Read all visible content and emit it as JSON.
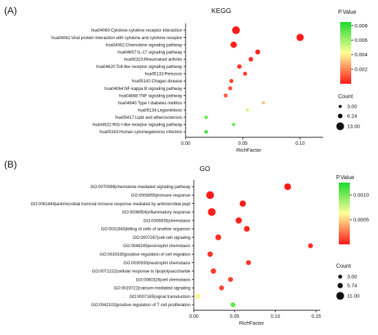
{
  "chart_data": [
    {
      "type": "scatter",
      "panel_label": "(A)",
      "title": "KEGG",
      "xlabel": "RichFactor",
      "xlim": [
        0,
        0.12
      ],
      "xticks": [
        "0.00",
        "0.05",
        "0.10"
      ],
      "xtick_values": [
        0,
        0.05,
        0.1
      ],
      "legend_color": {
        "title": "P.Value",
        "ticks": [
          "0.008",
          "0.006",
          "0.004",
          "0.002"
        ],
        "tick_values": [
          0.008,
          0.006,
          0.004,
          0.002
        ],
        "min": 0,
        "max": 0.0085
      },
      "legend_size": {
        "title": "Count",
        "labels": [
          "3.00",
          "6.24",
          "13.00"
        ],
        "values": [
          3,
          6.24,
          13
        ]
      },
      "points": [
        {
          "term": "hsa04060:Cytokine-cytokine receptor interaction",
          "rich": 0.044,
          "p": 0.0,
          "count": 13
        },
        {
          "term": "hsa04061:Viral protein interaction with cytokine and cytokine receptor",
          "rich": 0.1,
          "p": 0.0,
          "count": 12
        },
        {
          "term": "hsa04062:Chemokine signaling pathway",
          "rich": 0.042,
          "p": 0.0001,
          "count": 10
        },
        {
          "term": "hsa04657:IL-17 signaling pathway",
          "rich": 0.063,
          "p": 0.0002,
          "count": 7
        },
        {
          "term": "hsa05323:Rheumatoid arthritis",
          "rich": 0.057,
          "p": 0.0003,
          "count": 6
        },
        {
          "term": "hsa04620:Toll-like receptor signaling pathway",
          "rich": 0.047,
          "p": 0.0005,
          "count": 6
        },
        {
          "term": "hsa05133:Pertussis",
          "rich": 0.052,
          "p": 0.0006,
          "count": 5
        },
        {
          "term": "hsa05142:Chagas disease",
          "rich": 0.04,
          "p": 0.0008,
          "count": 5
        },
        {
          "term": "hsa04064:NF-kappa B signaling pathway",
          "rich": 0.039,
          "p": 0.001,
          "count": 5
        },
        {
          "term": "hsa04668:TNF signaling pathway",
          "rich": 0.035,
          "p": 0.0013,
          "count": 5
        },
        {
          "term": "hsa04940:Type I diabetes mellitus",
          "rich": 0.068,
          "p": 0.003,
          "count": 3
        },
        {
          "term": "hsa05134:Legionellosis",
          "rich": 0.054,
          "p": 0.0052,
          "count": 3
        },
        {
          "term": "hsa05417:Lipid and atherosclerosis",
          "rich": 0.018,
          "p": 0.007,
          "count": 4
        },
        {
          "term": "hsa04622:RIG-I-like receptor signaling pathway",
          "rich": 0.042,
          "p": 0.0073,
          "count": 3
        },
        {
          "term": "hsa05163:Human cytomegalovirus infection",
          "rich": 0.018,
          "p": 0.0078,
          "count": 4
        }
      ]
    },
    {
      "type": "scatter",
      "panel_label": "(B)",
      "title": "GO",
      "xlabel": "RichFactor",
      "xlim": [
        0,
        0.155
      ],
      "xticks": [
        "0.00",
        "0.05",
        "0.10",
        "0.15"
      ],
      "xtick_values": [
        0,
        0.05,
        0.1,
        0.15
      ],
      "legend_color": {
        "title": "P.Value",
        "ticks": [
          "0.0010",
          "0.0005"
        ],
        "tick_values": [
          0.001,
          0.0005
        ],
        "min": 0,
        "max": 0.00125
      },
      "legend_size": {
        "title": "Count",
        "labels": [
          "3.00",
          "5.74",
          "11.00"
        ],
        "values": [
          3,
          5.74,
          11
        ]
      },
      "points": [
        {
          "term": "GO:0070098|chemokine-mediated signaling pathway",
          "rich": 0.115,
          "p": 0.0,
          "count": 9
        },
        {
          "term": "GO:0006955|immune response",
          "rich": 0.02,
          "p": 0.0,
          "count": 11
        },
        {
          "term": "GO:0061844|antimicrobial humoral immune response mediated by antimicrobial pept",
          "rich": 0.06,
          "p": 1e-05,
          "count": 8
        },
        {
          "term": "GO:0006954|inflammatory response",
          "rich": 0.022,
          "p": 2e-05,
          "count": 11
        },
        {
          "term": "GO:0006935|chemotaxis",
          "rich": 0.055,
          "p": 3e-05,
          "count": 8
        },
        {
          "term": "GO:0031640|killing of cells of another organism",
          "rich": 0.065,
          "p": 4e-05,
          "count": 7
        },
        {
          "term": "GO:0007267|cell-cell signaling",
          "rich": 0.03,
          "p": 5e-05,
          "count": 7
        },
        {
          "term": "GO:0048245|eosinophil chemotaxis",
          "rich": 0.143,
          "p": 6e-05,
          "count": 5
        },
        {
          "term": "GO:0030335|positive regulation of cell migration",
          "rich": 0.02,
          "p": 7e-05,
          "count": 6
        },
        {
          "term": "GO:0030593|neutrophil chemotaxis",
          "rich": 0.067,
          "p": 8e-05,
          "count": 5
        },
        {
          "term": "GO:0071222|cellular response to lipopolysaccharide",
          "rich": 0.024,
          "p": 9e-05,
          "count": 6
        },
        {
          "term": "GO:0060326|cell chemotaxis",
          "rich": 0.045,
          "p": 0.0001,
          "count": 5
        },
        {
          "term": "GO:0019722|calcium-mediated signaling",
          "rich": 0.034,
          "p": 0.00012,
          "count": 5
        },
        {
          "term": "GO:0007165|signal transduction",
          "rich": 0.005,
          "p": 0.0006,
          "count": 6
        },
        {
          "term": "GO:0042102|positive regulation of T cell proliferation",
          "rich": 0.048,
          "p": 0.00105,
          "count": 5
        }
      ]
    }
  ],
  "colors": {
    "low": "#ff1a1a",
    "mid": "#ffff99",
    "high": "#1adb2e"
  }
}
